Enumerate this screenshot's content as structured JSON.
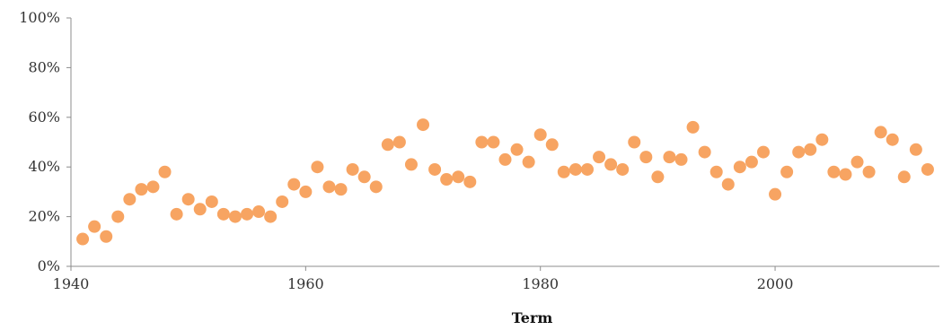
{
  "chart_data": {
    "type": "scatter",
    "title": "",
    "xlabel": "Term",
    "ylabel": "",
    "xlim": [
      1940,
      2014
    ],
    "ylim": [
      0,
      1
    ],
    "grid": false,
    "legend": "none",
    "x_ticks": [
      1940,
      1960,
      1980,
      2000
    ],
    "x_tick_labels": [
      "1940",
      "1960",
      "1980",
      "2000"
    ],
    "y_ticks": [
      0,
      0.2,
      0.4,
      0.6,
      0.8,
      1.0
    ],
    "y_tick_labels": [
      "0%",
      "20%",
      "40%",
      "60%",
      "80%",
      "100%"
    ],
    "marker_color": "#f7a462",
    "axis_color": "#8c8c8c",
    "series": [
      {
        "x": [
          1941,
          1942,
          1943,
          1944,
          1945,
          1946,
          1947,
          1948,
          1949,
          1950,
          1951,
          1952,
          1953,
          1954,
          1955,
          1956,
          1957,
          1958,
          1959,
          1960,
          1961,
          1962,
          1963,
          1964,
          1965,
          1966,
          1967,
          1968,
          1969,
          1970,
          1971,
          1972,
          1973,
          1974,
          1975,
          1976,
          1977,
          1978,
          1979,
          1980,
          1981,
          1982,
          1983,
          1984,
          1985,
          1986,
          1987,
          1988,
          1989,
          1990,
          1991,
          1992,
          1993,
          1994,
          1995,
          1996,
          1997,
          1998,
          1999,
          2000,
          2001,
          2002,
          2003,
          2004,
          2005,
          2006,
          2007,
          2008,
          2009,
          2010,
          2011,
          2012,
          2013
        ],
        "y": [
          0.11,
          0.16,
          0.12,
          0.2,
          0.27,
          0.31,
          0.32,
          0.38,
          0.21,
          0.27,
          0.23,
          0.26,
          0.21,
          0.2,
          0.21,
          0.22,
          0.2,
          0.26,
          0.33,
          0.3,
          0.4,
          0.32,
          0.31,
          0.39,
          0.36,
          0.32,
          0.49,
          0.5,
          0.41,
          0.57,
          0.39,
          0.35,
          0.36,
          0.34,
          0.5,
          0.5,
          0.43,
          0.47,
          0.42,
          0.53,
          0.49,
          0.38,
          0.39,
          0.39,
          0.44,
          0.41,
          0.39,
          0.5,
          0.44,
          0.36,
          0.44,
          0.43,
          0.56,
          0.46,
          0.38,
          0.33,
          0.4,
          0.42,
          0.46,
          0.29,
          0.38,
          0.46,
          0.47,
          0.51,
          0.38,
          0.37,
          0.42,
          0.38,
          0.54,
          0.51,
          0.36,
          0.47,
          0.39
        ]
      }
    ]
  }
}
